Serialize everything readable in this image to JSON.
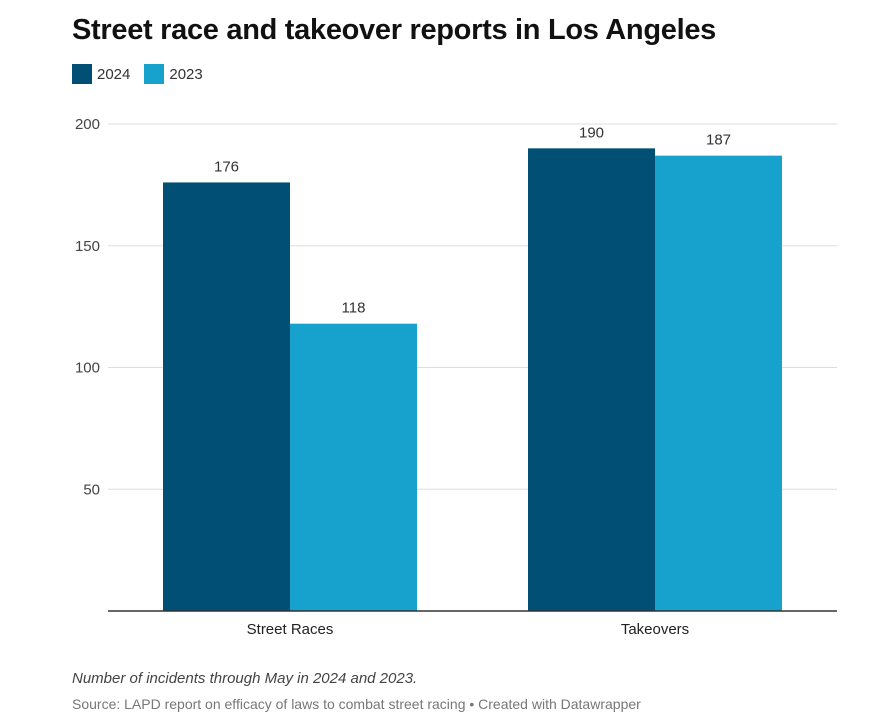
{
  "colors": {
    "series_2024": "#014f74",
    "series_2023": "#17a1cd",
    "grid": "#dddddd",
    "axis": "#333333"
  },
  "chart_data": {
    "type": "bar",
    "title": "Street race and takeover reports in Los Angeles",
    "categories": [
      "Street Races",
      "Takeovers"
    ],
    "series": [
      {
        "name": "2024",
        "values": [
          176,
          190
        ]
      },
      {
        "name": "2023",
        "values": [
          118,
          187
        ]
      }
    ],
    "yticks": [
      "50",
      "100",
      "150",
      "200"
    ],
    "ylim": [
      0,
      200
    ],
    "grid": true,
    "legend": "top-left",
    "note": "Number of incidents through May in 2024 and 2023.",
    "source": "Source: LAPD report on efficacy of laws to combat street racing • Created with Datawrapper"
  }
}
